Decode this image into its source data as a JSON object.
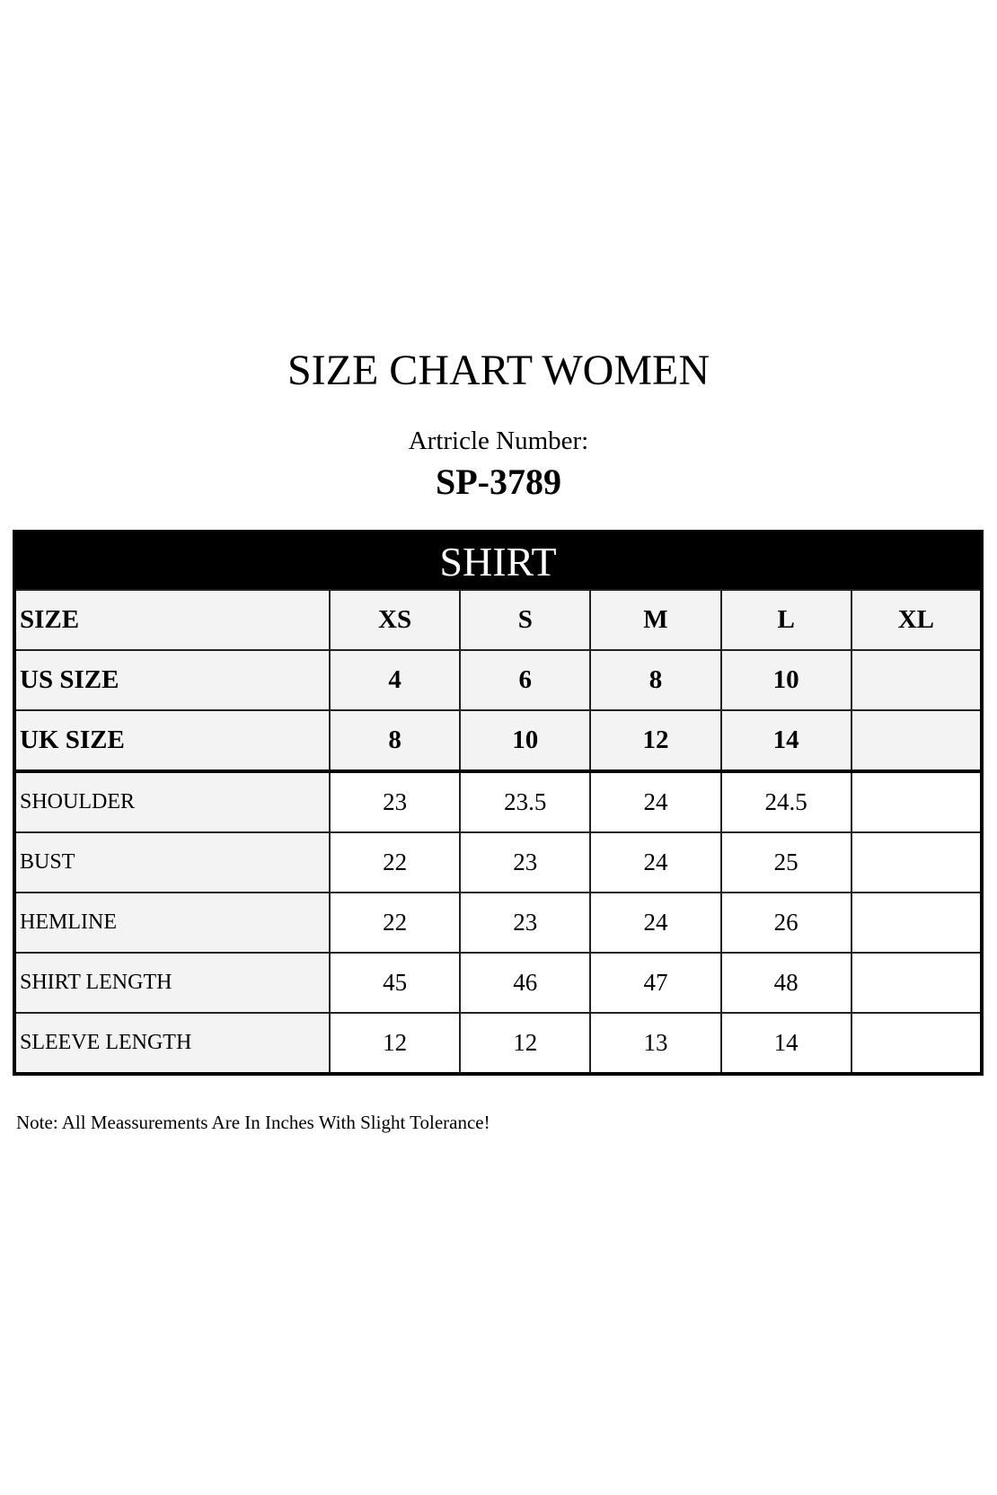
{
  "title": "SIZE CHART WOMEN",
  "article_label": "Artricle Number:",
  "article_number": "SP-3789",
  "table": {
    "banner": "SHIRT",
    "header_rows": [
      {
        "label": "SIZE",
        "values": [
          "XS",
          "S",
          "M",
          "L",
          "XL"
        ]
      },
      {
        "label": "US SIZE",
        "values": [
          "4",
          "6",
          "8",
          "10",
          ""
        ]
      },
      {
        "label": "UK SIZE",
        "values": [
          "8",
          "10",
          "12",
          "14",
          ""
        ]
      }
    ],
    "rows": [
      {
        "label": "SHOULDER",
        "values": [
          "23",
          "23.5",
          "24",
          "24.5",
          ""
        ]
      },
      {
        "label": "BUST",
        "values": [
          "22",
          "23",
          "24",
          "25",
          ""
        ]
      },
      {
        "label": "HEMLINE",
        "values": [
          "22",
          "23",
          "24",
          "26",
          ""
        ]
      },
      {
        "label": "SHIRT LENGTH",
        "values": [
          "45",
          "46",
          "47",
          "48",
          ""
        ]
      },
      {
        "label": "SLEEVE LENGTH",
        "values": [
          "12",
          "12",
          "13",
          "14",
          ""
        ]
      }
    ]
  },
  "note": "Note: All Meassurements Are In Inches With Slight Tolerance!"
}
